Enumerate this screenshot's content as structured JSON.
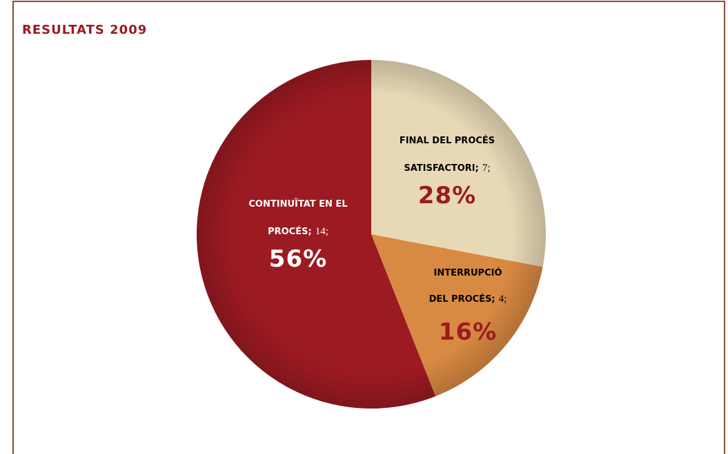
{
  "chart_data": {
    "type": "pie",
    "title": "RESULTATS 2009",
    "categories": [
      "FINAL DEL PROCÉS SATISFACTORI;",
      "INTERRUPCIÓ DEL PROCÉS;",
      "CONTINUÏTAT EN EL PROCÉS;"
    ],
    "values": [
      28,
      16,
      56
    ],
    "value_labels": [
      "28%",
      "16%",
      "56%"
    ],
    "counts": [
      7,
      4,
      14
    ],
    "count_labels": [
      "7;",
      "4;",
      "14;"
    ],
    "colors": [
      "#e8d9b6",
      "#d98a42",
      "#9c1a22"
    ]
  }
}
